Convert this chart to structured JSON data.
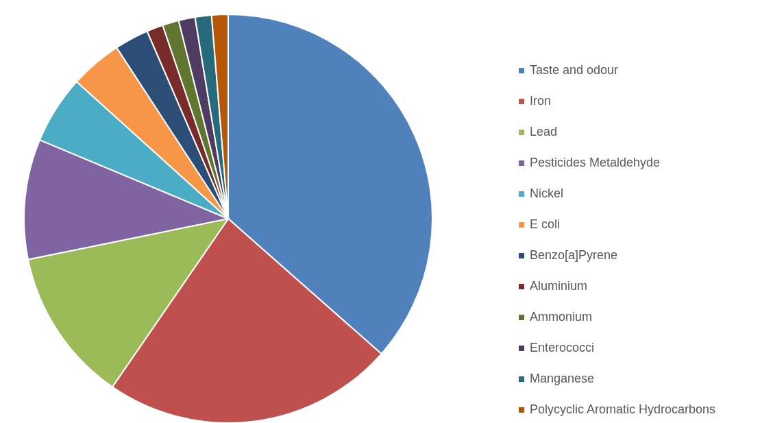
{
  "chart_data": {
    "type": "pie",
    "categories": [
      "Taste and odour",
      "Iron",
      "Lead",
      "Pesticides Metaldehyde",
      "Nickel",
      "E coli",
      "Benzo[a]Pyrene",
      "Aluminium",
      "Ammonium",
      "Enterococci",
      "Manganese",
      "Polycyclic Aromatic Hydrocarbons"
    ],
    "values": [
      36.5,
      23.1,
      12.2,
      9.5,
      5.4,
      4.1,
      2.7,
      1.3,
      1.3,
      1.3,
      1.3,
      1.3
    ],
    "colors": [
      "#4f81bd",
      "#c0504d",
      "#9bbb59",
      "#8064a2",
      "#4bacc6",
      "#f79646",
      "#2c4d75",
      "#772c2a",
      "#5f7530",
      "#4d3b62",
      "#276a7c",
      "#b65708"
    ],
    "legend": "right"
  }
}
